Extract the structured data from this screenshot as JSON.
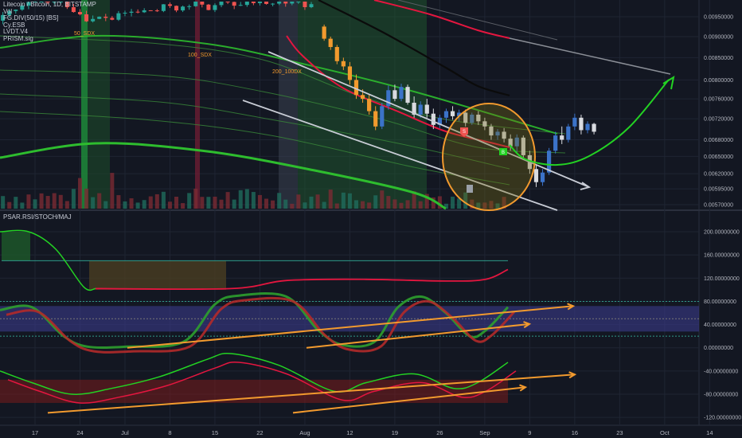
{
  "legend": {
    "symbol": "Litecoin / Bitcoin, 1D, BITSTAMP",
    "indicators": [
      "Vol",
      "FG.DIV(50/15) [BS]",
      "Cy.ESB",
      "LVDT.V4",
      "PRISM.sig"
    ]
  },
  "oscillator_pane": {
    "title": "PSAR.RSI/STOCH/MAJ"
  },
  "annotations": {
    "sma50": "50_SDX",
    "sma100": "100_SDX",
    "sma200": "200_100DX"
  },
  "signal_marks": {
    "sell": "S",
    "buy": "B"
  },
  "colors": {
    "background": "#131722",
    "grid": "#1f2533",
    "up": "#26a69a",
    "down": "#ef5350",
    "red_line": "#e4163f",
    "green_band": "#2ebd2e",
    "orange": "#f29a2e",
    "projection": "#23d223",
    "channel": "#c9cdd6"
  },
  "chart_data": [
    {
      "type": "candlestick",
      "title": "Litecoin / Bitcoin, 1D, BITSTAMP",
      "x_tick_labels": [
        "17",
        "24",
        "Jul",
        "8",
        "15",
        "22",
        "Aug",
        "12",
        "19",
        "26",
        "Sep",
        "9",
        "16",
        "23",
        "Oct",
        "14"
      ],
      "y_tick_labels": [
        "0.00950000",
        "0.00900000",
        "0.00850000",
        "0.00800000",
        "0.00760000",
        "0.00720000",
        "0.00680000",
        "0.00650000",
        "0.00620000",
        "0.00595000",
        "0.00570000"
      ],
      "ylim": [
        0.0057,
        0.0099
      ],
      "y_scale": "log",
      "grid": true,
      "legend_placement": "top-left",
      "series": [
        {
          "kind": "ohlc_recent",
          "start_date": "2018-08-01",
          "ohlc": [
            [
              0.00925,
              0.0093,
              0.0089,
              0.00895
            ],
            [
              0.00895,
              0.009,
              0.00868,
              0.00875
            ],
            [
              0.00875,
              0.0088,
              0.00835,
              0.00842
            ],
            [
              0.00842,
              0.0085,
              0.00822,
              0.0083
            ],
            [
              0.0083,
              0.0084,
              0.0079,
              0.008
            ],
            [
              0.008,
              0.00812,
              0.0076,
              0.00768
            ],
            [
              0.00768,
              0.0078,
              0.00752,
              0.0076
            ],
            [
              0.0076,
              0.0077,
              0.00728,
              0.00735
            ],
            [
              0.00735,
              0.00745,
              0.00698,
              0.00705
            ],
            [
              0.00705,
              0.00752,
              0.007,
              0.00745
            ],
            [
              0.00745,
              0.00788,
              0.00738,
              0.00778
            ],
            [
              0.00778,
              0.0079,
              0.00755,
              0.0076
            ],
            [
              0.0076,
              0.00792,
              0.00755,
              0.00785
            ],
            [
              0.00785,
              0.0079,
              0.00748,
              0.00752
            ],
            [
              0.00752,
              0.00765,
              0.00722,
              0.00728
            ],
            [
              0.00728,
              0.00755,
              0.00722,
              0.00748
            ],
            [
              0.00748,
              0.0076,
              0.00722,
              0.0073
            ],
            [
              0.0073,
              0.0074,
              0.007,
              0.00708
            ],
            [
              0.00708,
              0.00728,
              0.00702,
              0.00722
            ],
            [
              0.00722,
              0.0074,
              0.00712,
              0.00735
            ],
            [
              0.00735,
              0.00745,
              0.00718,
              0.00725
            ],
            [
              0.00725,
              0.00738,
              0.00715,
              0.00732
            ],
            [
              0.00732,
              0.00738,
              0.00705,
              0.00712
            ],
            [
              0.00712,
              0.00732,
              0.00708,
              0.00728
            ],
            [
              0.00728,
              0.00735,
              0.00708,
              0.00715
            ],
            [
              0.00715,
              0.00722,
              0.00698,
              0.00705
            ],
            [
              0.00705,
              0.0071,
              0.0068,
              0.00688
            ],
            [
              0.00688,
              0.007,
              0.0068,
              0.00695
            ],
            [
              0.00695,
              0.00702,
              0.00675,
              0.00682
            ],
            [
              0.00682,
              0.0069,
              0.0066,
              0.00668
            ],
            [
              0.00668,
              0.0069,
              0.00655,
              0.00684
            ],
            [
              0.00684,
              0.00688,
              0.00645,
              0.00652
            ],
            [
              0.00652,
              0.0066,
              0.0062,
              0.00628
            ],
            [
              0.00628,
              0.00635,
              0.00598,
              0.00606
            ],
            [
              0.00606,
              0.00628,
              0.006,
              0.00622
            ],
            [
              0.00622,
              0.00665,
              0.00618,
              0.0066
            ],
            [
              0.0066,
              0.00695,
              0.00655,
              0.00688
            ],
            [
              0.00688,
              0.00705,
              0.00672,
              0.0068
            ],
            [
              0.0068,
              0.0071,
              0.00675,
              0.00705
            ],
            [
              0.00705,
              0.0073,
              0.00698,
              0.00722
            ],
            [
              0.00722,
              0.00728,
              0.0069,
              0.00698
            ],
            [
              0.00698,
              0.00715,
              0.00692,
              0.0071
            ],
            [
              0.0071,
              0.00712,
              0.0069,
              0.00695
            ]
          ]
        },
        {
          "name": "50_SDX",
          "kind": "sma",
          "color": "#e4163f"
        },
        {
          "name": "100_SDX",
          "kind": "sma",
          "color": "#0b0b0b"
        },
        {
          "name": "200_100DX",
          "kind": "sma",
          "color": "#2ebd2e"
        }
      ],
      "annotations": [
        "falling channel",
        "orange circle around early September lows",
        "projected green recovery curve toward 0.00810"
      ]
    },
    {
      "type": "line",
      "title": "PSAR.RSI/STOCH/MAJ",
      "y_tick_labels": [
        "200.00000000",
        "160.00000000",
        "120.00000000",
        "80.00000000",
        "40.00000000",
        "0.00000000",
        "-40.00000000",
        "-80.00000000",
        "-120.00000000"
      ],
      "ylim": [
        -125,
        205
      ],
      "grid": true,
      "annotations": [
        "rising orange trendlines under RSI lows",
        "rising orange trendlines under stochastic lows"
      ]
    }
  ]
}
